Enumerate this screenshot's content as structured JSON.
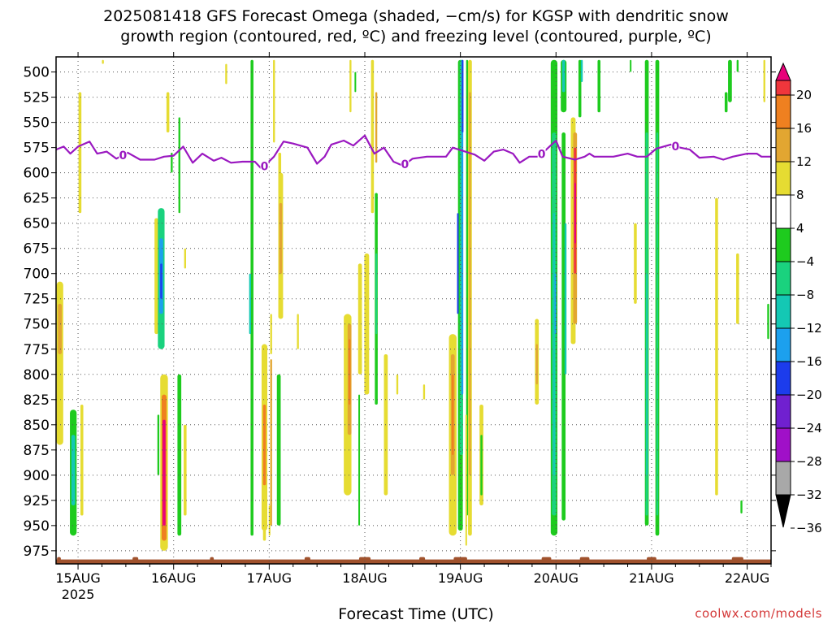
{
  "title": {
    "line1": "2025081418 GFS Forecast Omega (shaded, −cm/s) for KGSP with dendritic snow",
    "line2": "growth region (contoured, red, ºC) and freezing level (contoured, purple, ºC)"
  },
  "credit": "coolwx.com/models",
  "chart_data": {
    "type": "heatmap",
    "title": "2025081418 GFS Forecast Omega (shaded, −cm/s) for KGSP with dendritic snow growth region (contoured, red, ºC) and freezing level (contoured, purple, ºC)",
    "xlabel": "Forecast Time (UTC)",
    "ylabel": "",
    "x_ticks": [
      {
        "label": "15AUG",
        "sub": "2025",
        "t": 0.0
      },
      {
        "label": "16AUG",
        "sub": "",
        "t": 1.0
      },
      {
        "label": "17AUG",
        "sub": "",
        "t": 2.0
      },
      {
        "label": "18AUG",
        "sub": "",
        "t": 3.0
      },
      {
        "label": "19AUG",
        "sub": "",
        "t": 4.0
      },
      {
        "label": "20AUG",
        "sub": "",
        "t": 5.0
      },
      {
        "label": "21AUG",
        "sub": "",
        "t": 6.0
      },
      {
        "label": "22AUG",
        "sub": "",
        "t": 7.0
      }
    ],
    "xlim": [
      -0.23,
      7.25
    ],
    "y_ticks": [
      "500",
      "525",
      "550",
      "575",
      "600",
      "625",
      "650",
      "675",
      "700",
      "725",
      "750",
      "775",
      "800",
      "825",
      "850",
      "875",
      "900",
      "925",
      "950",
      "975"
    ],
    "ylim": [
      485,
      988
    ],
    "y_inverted": true,
    "grid": true,
    "colorbar": {
      "labels": [
        "20",
        "16",
        "12",
        "8",
        "4",
        "−4",
        "−8",
        "−12",
        "−16",
        "−20",
        "−24",
        "−28",
        "−32",
        "−36"
      ],
      "bins": [
        {
          "range": "> 20",
          "color": "#e8007a"
        },
        {
          "range": "16 to 20",
          "color": "#f0363c"
        },
        {
          "range": "12 to 16",
          "color": "#ef8020"
        },
        {
          "range": "8 to 12",
          "color": "#e2a631"
        },
        {
          "range": "4 to 8",
          "color": "#e6dc32"
        },
        {
          "range": "-4 to 4",
          "color": "#ffffff"
        },
        {
          "range": "-8 to -4",
          "color": "#1ecb1e"
        },
        {
          "range": "-12 to -8",
          "color": "#1ad27e"
        },
        {
          "range": "-16 to -12",
          "color": "#14c8b4"
        },
        {
          "range": "-20 to -16",
          "color": "#1ca0ee"
        },
        {
          "range": "-24 to -20",
          "color": "#1c3cec"
        },
        {
          "range": "-28 to -24",
          "color": "#7020d0"
        },
        {
          "range": "-32 to -28",
          "color": "#a010c8"
        },
        {
          "range": "-36 to -32",
          "color": "#a8a8a8"
        },
        {
          "range": "< -36",
          "color": "#000000"
        }
      ]
    },
    "freezing_level": {
      "color": "#9a18c0",
      "label": "0",
      "points": [
        [
          -0.23,
          577
        ],
        [
          -0.15,
          574
        ],
        [
          -0.08,
          581
        ],
        [
          0.0,
          574
        ],
        [
          0.12,
          569
        ],
        [
          0.2,
          581
        ],
        [
          0.3,
          579
        ],
        [
          0.4,
          586
        ],
        [
          0.52,
          580
        ],
        [
          0.65,
          587
        ],
        [
          0.8,
          587
        ],
        [
          0.9,
          584
        ],
        [
          1.0,
          583
        ],
        [
          1.1,
          574
        ],
        [
          1.2,
          590
        ],
        [
          1.3,
          581
        ],
        [
          1.42,
          588
        ],
        [
          1.5,
          585
        ],
        [
          1.6,
          590
        ],
        [
          1.72,
          589
        ],
        [
          1.85,
          589
        ],
        [
          1.92,
          596
        ],
        [
          2.05,
          584
        ],
        [
          2.15,
          569
        ],
        [
          2.25,
          571
        ],
        [
          2.4,
          575
        ],
        [
          2.5,
          591
        ],
        [
          2.58,
          584
        ],
        [
          2.65,
          572
        ],
        [
          2.78,
          568
        ],
        [
          2.88,
          573
        ],
        [
          3.0,
          563
        ],
        [
          3.1,
          581
        ],
        [
          3.2,
          575
        ],
        [
          3.3,
          589
        ],
        [
          3.4,
          593
        ],
        [
          3.5,
          586
        ],
        [
          3.65,
          584
        ],
        [
          3.85,
          584
        ],
        [
          3.92,
          575
        ],
        [
          4.05,
          579
        ],
        [
          4.15,
          582
        ],
        [
          4.25,
          588
        ],
        [
          4.35,
          579
        ],
        [
          4.45,
          577
        ],
        [
          4.55,
          581
        ],
        [
          4.62,
          590
        ],
        [
          4.72,
          584
        ],
        [
          4.82,
          584
        ],
        [
          4.92,
          575
        ],
        [
          5.0,
          568
        ],
        [
          5.07,
          584
        ],
        [
          5.2,
          587
        ],
        [
          5.3,
          584
        ],
        [
          5.35,
          581
        ],
        [
          5.4,
          584
        ],
        [
          5.6,
          584
        ],
        [
          5.75,
          581
        ],
        [
          5.85,
          584
        ],
        [
          5.95,
          584
        ],
        [
          6.05,
          576
        ],
        [
          6.2,
          572
        ],
        [
          6.3,
          575
        ],
        [
          6.4,
          577
        ],
        [
          6.5,
          585
        ],
        [
          6.65,
          584
        ],
        [
          6.75,
          587
        ],
        [
          6.85,
          584
        ],
        [
          7.0,
          581
        ],
        [
          7.1,
          581
        ],
        [
          7.15,
          584
        ],
        [
          7.25,
          584
        ]
      ],
      "labels_at": [
        0.47,
        1.95,
        3.42,
        4.85,
        6.25
      ]
    },
    "terrain": {
      "color": "#a0522d",
      "level": 978
    },
    "omega_cells": [
      {
        "t": -0.19,
        "w": 0.07,
        "p0": 708,
        "p1": 870,
        "color": "#e6dc32"
      },
      {
        "t": -0.19,
        "w": 0.04,
        "p0": 730,
        "p1": 780,
        "color": "#e2a631"
      },
      {
        "t": 0.02,
        "w": 0.03,
        "p0": 520,
        "p1": 640,
        "color": "#e6dc32"
      },
      {
        "t": -0.05,
        "w": 0.07,
        "p0": 835,
        "p1": 960,
        "color": "#1ecb1e"
      },
      {
        "t": -0.05,
        "w": 0.04,
        "p0": 860,
        "p1": 930,
        "color": "#14c8b4"
      },
      {
        "t": 0.04,
        "w": 0.03,
        "p0": 830,
        "p1": 940,
        "color": "#e6dc32"
      },
      {
        "t": 0.26,
        "w": 0.02,
        "p0": 488,
        "p1": 492,
        "color": "#e6dc32"
      },
      {
        "t": 0.82,
        "w": 0.04,
        "p0": 645,
        "p1": 760,
        "color": "#e6dc32"
      },
      {
        "t": 0.87,
        "w": 0.07,
        "p0": 635,
        "p1": 775,
        "color": "#1ad27e"
      },
      {
        "t": 0.87,
        "w": 0.04,
        "p0": 665,
        "p1": 740,
        "color": "#1ca0ee"
      },
      {
        "t": 0.87,
        "w": 0.02,
        "p0": 690,
        "p1": 725,
        "color": "#1c3cec"
      },
      {
        "t": 0.94,
        "w": 0.03,
        "p0": 520,
        "p1": 560,
        "color": "#e6dc32"
      },
      {
        "t": 0.9,
        "w": 0.08,
        "p0": 800,
        "p1": 975,
        "color": "#e6dc32"
      },
      {
        "t": 0.9,
        "w": 0.05,
        "p0": 820,
        "p1": 965,
        "color": "#ef8020"
      },
      {
        "t": 0.9,
        "w": 0.03,
        "p0": 845,
        "p1": 950,
        "color": "#e8007a"
      },
      {
        "t": 0.84,
        "w": 0.02,
        "p0": 840,
        "p1": 900,
        "color": "#1ecb1e"
      },
      {
        "t": 1.06,
        "w": 0.04,
        "p0": 800,
        "p1": 960,
        "color": "#1ecb1e"
      },
      {
        "t": 1.12,
        "w": 0.03,
        "p0": 850,
        "p1": 940,
        "color": "#e6dc32"
      },
      {
        "t": 1.06,
        "w": 0.02,
        "p0": 545,
        "p1": 640,
        "color": "#1ecb1e"
      },
      {
        "t": 0.98,
        "w": 0.02,
        "p0": 580,
        "p1": 600,
        "color": "#1ecb1e"
      },
      {
        "t": 1.12,
        "w": 0.02,
        "p0": 675,
        "p1": 695,
        "color": "#e6dc32"
      },
      {
        "t": 1.55,
        "w": 0.02,
        "p0": 492,
        "p1": 512,
        "color": "#e6dc32"
      },
      {
        "t": 1.82,
        "w": 0.03,
        "p0": 488,
        "p1": 960,
        "color": "#1ecb1e"
      },
      {
        "t": 1.8,
        "w": 0.02,
        "p0": 700,
        "p1": 760,
        "color": "#14c8b4"
      },
      {
        "t": 1.95,
        "w": 0.03,
        "p0": 780,
        "p1": 965,
        "color": "#e6dc32"
      },
      {
        "t": 1.95,
        "w": 0.02,
        "p0": 810,
        "p1": 930,
        "color": "#e2a631"
      },
      {
        "t": 1.95,
        "w": 0.06,
        "p0": 770,
        "p1": 955,
        "color": "#e6dc32"
      },
      {
        "t": 1.95,
        "w": 0.03,
        "p0": 830,
        "p1": 910,
        "color": "#ef8020"
      },
      {
        "t": 2.02,
        "w": 0.02,
        "p0": 785,
        "p1": 950,
        "color": "#e2a631"
      },
      {
        "t": 2.1,
        "w": 0.04,
        "p0": 800,
        "p1": 950,
        "color": "#1ecb1e"
      },
      {
        "t": 2.02,
        "w": 0.02,
        "p0": 740,
        "p1": 780,
        "color": "#e6dc32"
      },
      {
        "t": 2.05,
        "w": 0.02,
        "p0": 488,
        "p1": 570,
        "color": "#e6dc32"
      },
      {
        "t": 2.12,
        "w": 0.05,
        "p0": 600,
        "p1": 745,
        "color": "#e6dc32"
      },
      {
        "t": 2.12,
        "w": 0.03,
        "p0": 630,
        "p1": 700,
        "color": "#e2a631"
      },
      {
        "t": 2.11,
        "w": 0.03,
        "p0": 580,
        "p1": 620,
        "color": "#e6dc32"
      },
      {
        "t": 2.3,
        "w": 0.02,
        "p0": 740,
        "p1": 775,
        "color": "#e6dc32"
      },
      {
        "t": 2.0,
        "w": 0.01,
        "p0": 930,
        "p1": 960,
        "color": "#e6dc32"
      },
      {
        "t": 3.08,
        "w": 0.03,
        "p0": 488,
        "p1": 640,
        "color": "#e6dc32"
      },
      {
        "t": 3.12,
        "w": 0.02,
        "p0": 520,
        "p1": 590,
        "color": "#e2a631"
      },
      {
        "t": 2.85,
        "w": 0.02,
        "p0": 488,
        "p1": 540,
        "color": "#e6dc32"
      },
      {
        "t": 2.9,
        "w": 0.015,
        "p0": 500,
        "p1": 520,
        "color": "#1ecb1e"
      },
      {
        "t": 2.82,
        "w": 0.08,
        "p0": 740,
        "p1": 920,
        "color": "#e6dc32"
      },
      {
        "t": 2.84,
        "w": 0.04,
        "p0": 750,
        "p1": 860,
        "color": "#e2a631"
      },
      {
        "t": 2.84,
        "w": 0.02,
        "p0": 765,
        "p1": 830,
        "color": "#ef8020"
      },
      {
        "t": 2.95,
        "w": 0.04,
        "p0": 690,
        "p1": 800,
        "color": "#e6dc32"
      },
      {
        "t": 2.94,
        "w": 0.015,
        "p0": 820,
        "p1": 950,
        "color": "#1ecb1e"
      },
      {
        "t": 3.12,
        "w": 0.03,
        "p0": 620,
        "p1": 830,
        "color": "#1ecb1e"
      },
      {
        "t": 3.12,
        "w": 0.015,
        "p0": 680,
        "p1": 760,
        "color": "#1ad27e"
      },
      {
        "t": 3.02,
        "w": 0.05,
        "p0": 680,
        "p1": 820,
        "color": "#e6dc32"
      },
      {
        "t": 3.22,
        "w": 0.04,
        "p0": 780,
        "p1": 920,
        "color": "#e6dc32"
      },
      {
        "t": 3.34,
        "w": 0.02,
        "p0": 800,
        "p1": 820,
        "color": "#e6dc32"
      },
      {
        "t": 3.92,
        "w": 0.08,
        "p0": 760,
        "p1": 960,
        "color": "#e6dc32"
      },
      {
        "t": 3.92,
        "w": 0.04,
        "p0": 780,
        "p1": 900,
        "color": "#e2a631"
      },
      {
        "t": 3.92,
        "w": 0.02,
        "p0": 800,
        "p1": 880,
        "color": "#ef8020"
      },
      {
        "t": 4.0,
        "w": 0.05,
        "p0": 488,
        "p1": 955,
        "color": "#1ecb1e"
      },
      {
        "t": 4.01,
        "w": 0.035,
        "p0": 488,
        "p1": 880,
        "color": "#1ad27e"
      },
      {
        "t": 4.02,
        "w": 0.02,
        "p0": 488,
        "p1": 820,
        "color": "#1ca0ee"
      },
      {
        "t": 4.02,
        "w": 0.01,
        "p0": 488,
        "p1": 560,
        "color": "#1c3cec"
      },
      {
        "t": 3.97,
        "w": 0.01,
        "p0": 640,
        "p1": 740,
        "color": "#1c3cec"
      },
      {
        "t": 4.1,
        "w": 0.04,
        "p0": 488,
        "p1": 960,
        "color": "#e6dc32"
      },
      {
        "t": 4.1,
        "w": 0.02,
        "p0": 520,
        "p1": 900,
        "color": "#e2a631"
      },
      {
        "t": 4.07,
        "w": 0.02,
        "p0": 488,
        "p1": 940,
        "color": "#1ecb1e"
      },
      {
        "t": 4.22,
        "w": 0.04,
        "p0": 830,
        "p1": 930,
        "color": "#e6dc32"
      },
      {
        "t": 4.22,
        "w": 0.02,
        "p0": 860,
        "p1": 920,
        "color": "#1ecb1e"
      },
      {
        "t": 4.06,
        "w": 0.015,
        "p0": 840,
        "p1": 970,
        "color": "#e6dc32"
      },
      {
        "t": 4.8,
        "w": 0.04,
        "p0": 745,
        "p1": 830,
        "color": "#e6dc32"
      },
      {
        "t": 4.8,
        "w": 0.02,
        "p0": 770,
        "p1": 810,
        "color": "#e2a631"
      },
      {
        "t": 4.98,
        "w": 0.07,
        "p0": 488,
        "p1": 960,
        "color": "#1ecb1e"
      },
      {
        "t": 4.98,
        "w": 0.045,
        "p0": 560,
        "p1": 940,
        "color": "#1ad27e"
      },
      {
        "t": 4.98,
        "w": 0.02,
        "p0": 640,
        "p1": 900,
        "color": "#14c8b4"
      },
      {
        "t": 4.99,
        "w": 0.01,
        "p0": 700,
        "p1": 760,
        "color": "#1ca0ee"
      },
      {
        "t": 5.08,
        "w": 0.06,
        "p0": 488,
        "p1": 540,
        "color": "#1ecb1e"
      },
      {
        "t": 5.08,
        "w": 0.03,
        "p0": 488,
        "p1": 520,
        "color": "#14c8b4"
      },
      {
        "t": 5.08,
        "w": 0.04,
        "p0": 560,
        "p1": 945,
        "color": "#1ecb1e"
      },
      {
        "t": 5.1,
        "w": 0.02,
        "p0": 650,
        "p1": 800,
        "color": "#14c8b4"
      },
      {
        "t": 5.18,
        "w": 0.05,
        "p0": 545,
        "p1": 770,
        "color": "#e6dc32"
      },
      {
        "t": 5.2,
        "w": 0.04,
        "p0": 560,
        "p1": 750,
        "color": "#e2a631"
      },
      {
        "t": 5.2,
        "w": 0.025,
        "p0": 575,
        "p1": 700,
        "color": "#f0363c"
      },
      {
        "t": 5.2,
        "w": 0.015,
        "p0": 610,
        "p1": 670,
        "color": "#e8007a"
      },
      {
        "t": 5.25,
        "w": 0.03,
        "p0": 488,
        "p1": 545,
        "color": "#1ecb1e"
      },
      {
        "t": 5.27,
        "w": 0.02,
        "p0": 488,
        "p1": 510,
        "color": "#14c8b4"
      },
      {
        "t": 5.45,
        "w": 0.03,
        "p0": 488,
        "p1": 540,
        "color": "#1ecb1e"
      },
      {
        "t": 5.95,
        "w": 0.04,
        "p0": 488,
        "p1": 950,
        "color": "#1ecb1e"
      },
      {
        "t": 5.95,
        "w": 0.025,
        "p0": 560,
        "p1": 940,
        "color": "#1ad27e"
      },
      {
        "t": 5.95,
        "w": 0.012,
        "p0": 700,
        "p1": 900,
        "color": "#14c8b4"
      },
      {
        "t": 6.06,
        "w": 0.04,
        "p0": 488,
        "p1": 960,
        "color": "#1ecb1e"
      },
      {
        "t": 6.06,
        "w": 0.02,
        "p0": 560,
        "p1": 940,
        "color": "#1ad27e"
      },
      {
        "t": 5.83,
        "w": 0.03,
        "p0": 650,
        "p1": 730,
        "color": "#e6dc32"
      },
      {
        "t": 5.78,
        "w": 0.015,
        "p0": 488,
        "p1": 500,
        "color": "#1ecb1e"
      },
      {
        "t": 6.82,
        "w": 0.04,
        "p0": 488,
        "p1": 530,
        "color": "#1ecb1e"
      },
      {
        "t": 6.78,
        "w": 0.03,
        "p0": 520,
        "p1": 540,
        "color": "#1ecb1e"
      },
      {
        "t": 6.9,
        "w": 0.02,
        "p0": 488,
        "p1": 500,
        "color": "#1ecb1e"
      },
      {
        "t": 7.18,
        "w": 0.02,
        "p0": 488,
        "p1": 530,
        "color": "#e6dc32"
      },
      {
        "t": 6.68,
        "w": 0.03,
        "p0": 625,
        "p1": 920,
        "color": "#e6dc32"
      },
      {
        "t": 6.9,
        "w": 0.03,
        "p0": 680,
        "p1": 750,
        "color": "#e6dc32"
      },
      {
        "t": 7.22,
        "w": 0.02,
        "p0": 730,
        "p1": 765,
        "color": "#1ecb1e"
      },
      {
        "t": 6.94,
        "w": 0.02,
        "p0": 925,
        "p1": 938,
        "color": "#1ecb1e"
      },
      {
        "t": 3.62,
        "w": 0.02,
        "p0": 810,
        "p1": 825,
        "color": "#e6dc32"
      }
    ]
  }
}
